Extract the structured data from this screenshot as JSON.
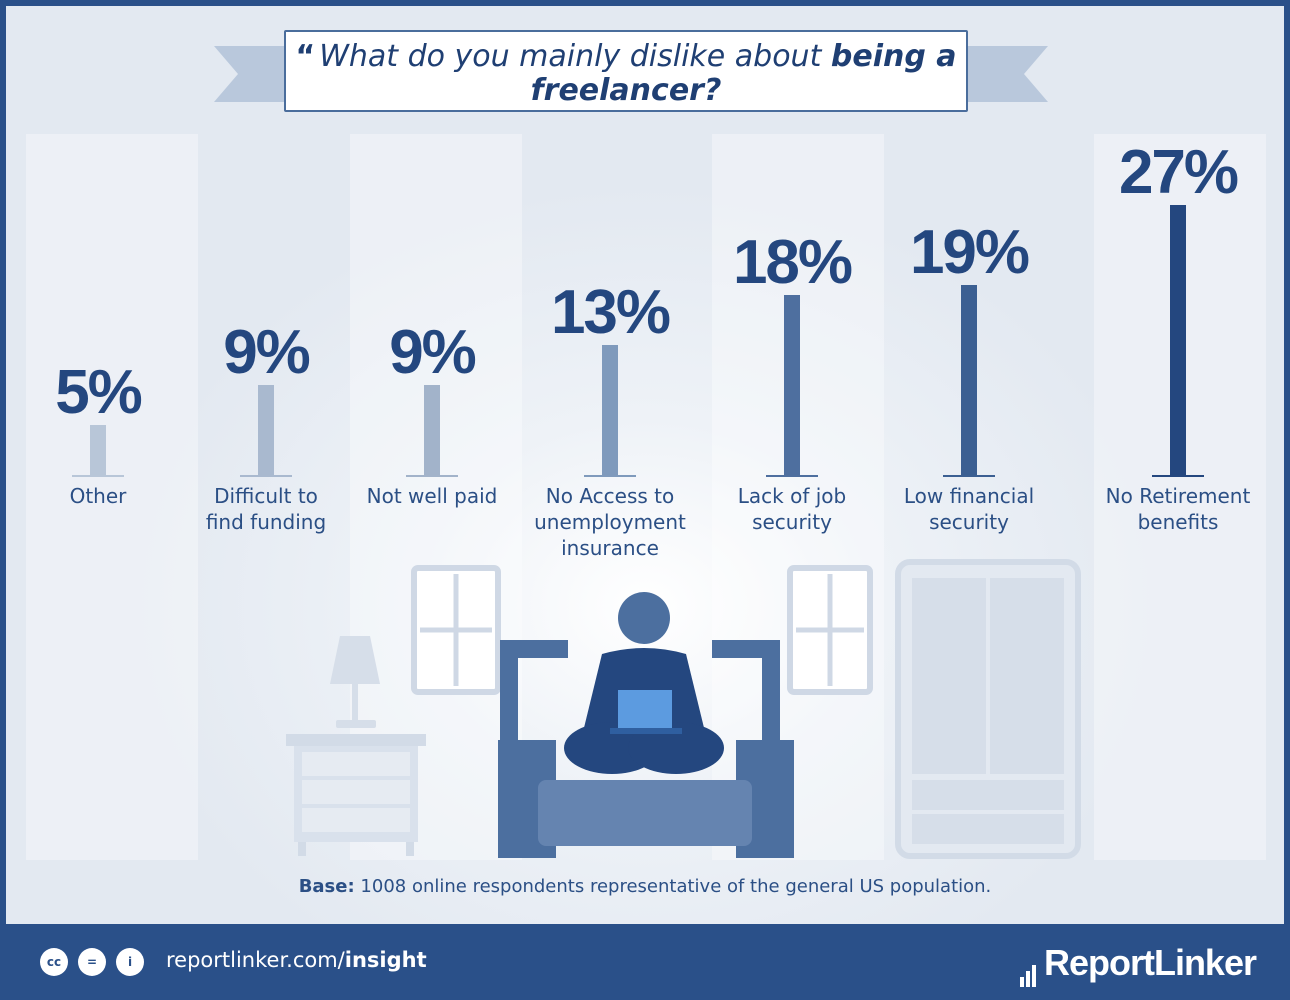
{
  "title": {
    "quote_icon": "quote-mark-icon",
    "plain": "What do you mainly dislike about",
    "bold": "being a freelancer?"
  },
  "chart_data": {
    "type": "bar",
    "categories": [
      "Other",
      "Difficult to find funding",
      "Not well paid",
      "No Access to unemployment insurance",
      "Lack of job security",
      "Low financial security",
      "No Retirement benefits"
    ],
    "category_lines": [
      [
        "Other"
      ],
      [
        "Difficult to",
        "find funding"
      ],
      [
        "Not well paid"
      ],
      [
        "No Access to",
        "unemployment",
        "insurance"
      ],
      [
        "Lack of job",
        "security"
      ],
      [
        "Low financial",
        "security"
      ],
      [
        "No Retirement",
        "benefits"
      ]
    ],
    "values": [
      5,
      9,
      9,
      13,
      18,
      19,
      27
    ],
    "value_labels": [
      "5%",
      "9%",
      "9%",
      "13%",
      "18%",
      "19%",
      "27%"
    ],
    "unit": "%",
    "ylim": [
      0,
      27
    ],
    "grid": false,
    "bar_colors": [
      "#b8c6d8",
      "#a9b9cf",
      "#a2b3ca",
      "#7f9abc",
      "#4e6f9f",
      "#3b5f92",
      "#24477f"
    ]
  },
  "base_note": {
    "label": "Base:",
    "text": "1008 online respondents representative of the general US population."
  },
  "footer": {
    "license_icons": [
      "cc-icon",
      "equals-icon",
      "person-icon"
    ],
    "link_plain": "reportlinker.com/",
    "link_bold": "insight",
    "logo": "ReportLinker"
  },
  "colors": {
    "brand": "#2a5089",
    "title_text": "#1f3f73",
    "illustration": "#4c6f9f"
  }
}
